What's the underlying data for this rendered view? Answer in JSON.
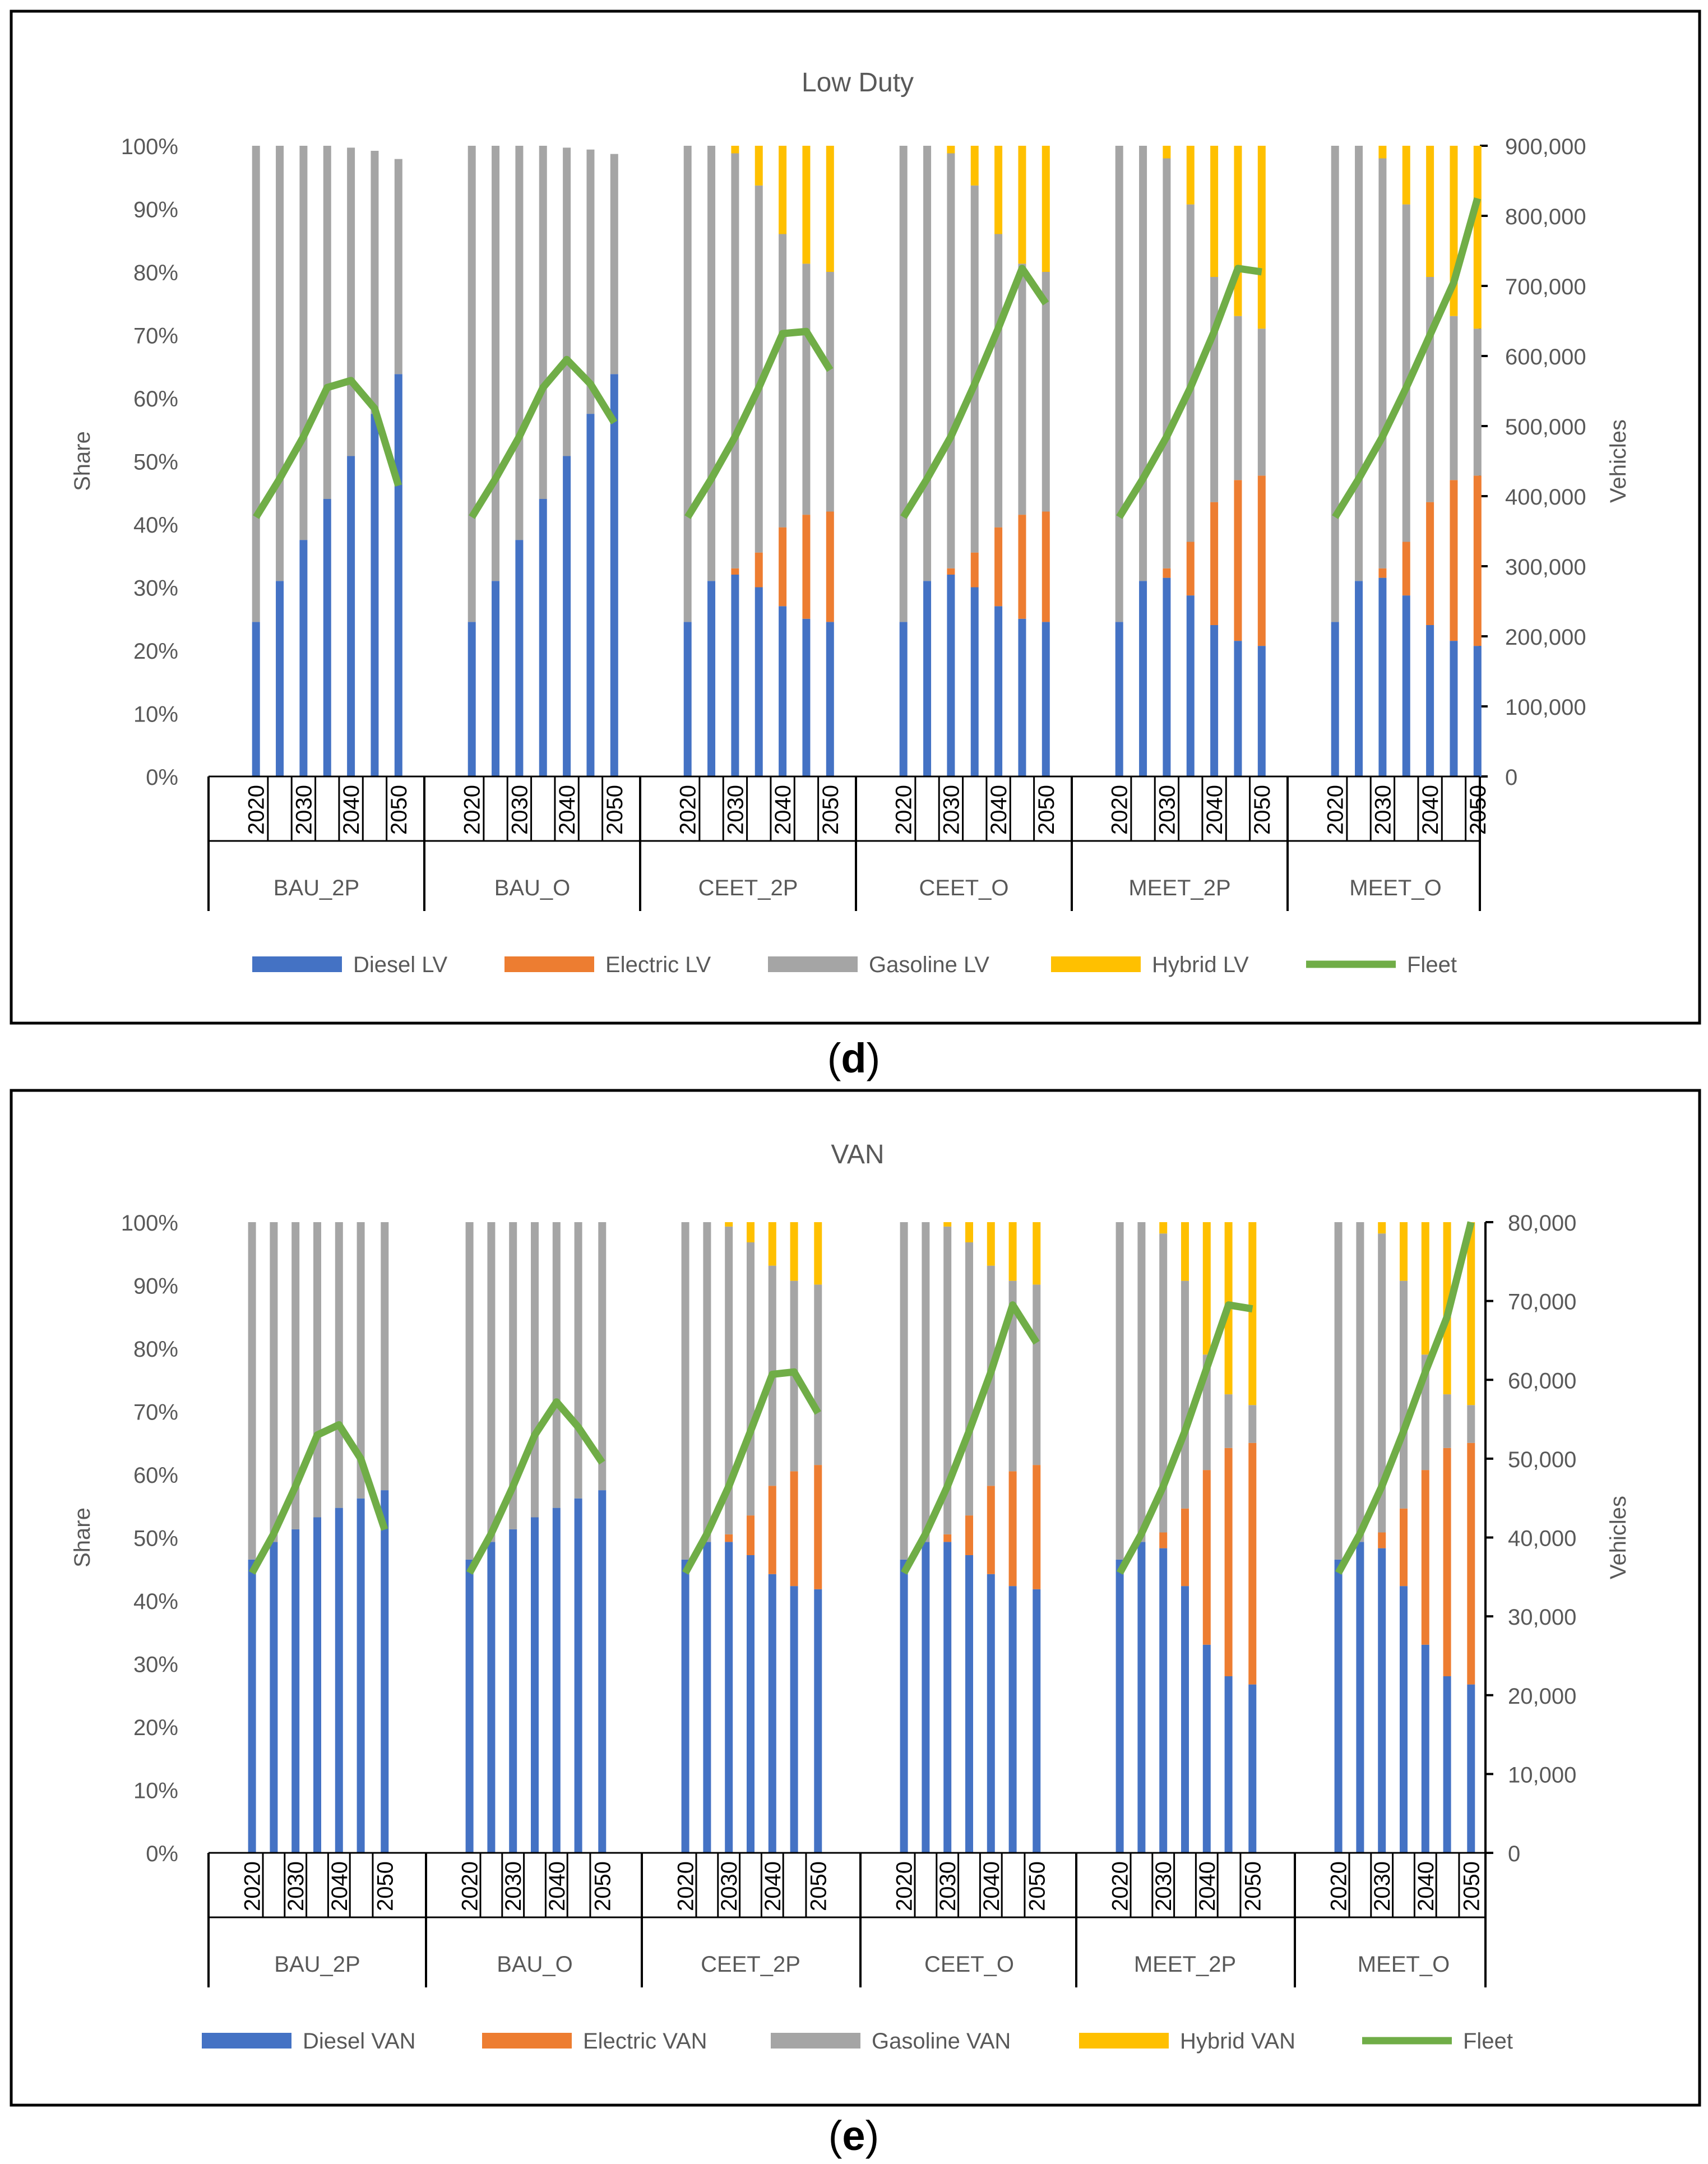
{
  "chart_data": [
    {
      "type": "bar",
      "subtype": "stacked-bar-with-line",
      "panel_label": "(d)",
      "panel_letter": "d",
      "title": "Low Duty",
      "ylabel": "Share",
      "y2label": "Vehicles",
      "ylim": [
        0,
        100
      ],
      "y2lim": [
        0,
        900000
      ],
      "yticks": [
        "0%",
        "10%",
        "20%",
        "30%",
        "40%",
        "50%",
        "60%",
        "70%",
        "80%",
        "90%",
        "100%"
      ],
      "y2ticks": [
        "0",
        "100,000",
        "200,000",
        "300,000",
        "400,000",
        "500,000",
        "600,000",
        "700,000",
        "800,000",
        "900,000"
      ],
      "years": [
        2020,
        2025,
        2030,
        2035,
        2040,
        2045,
        2050
      ],
      "tick_labels": [
        "2020",
        "2030",
        "2040",
        "2050"
      ],
      "groups": [
        "BAU_2P",
        "BAU_O",
        "CEET_2P",
        "CEET_O",
        "MEET_2P",
        "MEET_O"
      ],
      "legend": [
        "Diesel LV",
        "Electric LV",
        "Gasoline LV",
        "Hybrid LV",
        "Fleet"
      ],
      "colors": {
        "diesel": "#4472c4",
        "electric": "#ed7d31",
        "gasoline": "#a5a5a5",
        "hybrid": "#ffc000",
        "fleet": "#70ad47"
      },
      "series": [
        {
          "name": "Diesel LV",
          "values": [
            [
              24.5,
              31,
              37.5,
              44,
              50.8,
              57.5,
              63.8
            ],
            [
              24.5,
              31,
              37.5,
              44,
              50.8,
              57.5,
              63.8
            ],
            [
              24.5,
              31,
              32,
              30,
              27,
              25,
              24.5
            ],
            [
              24.5,
              31,
              32,
              30,
              27,
              25,
              24.5
            ],
            [
              24.5,
              31,
              31.5,
              28.7,
              24,
              21.5,
              20.7
            ],
            [
              24.5,
              31,
              31.5,
              28.7,
              24,
              21.5,
              20.7
            ]
          ]
        },
        {
          "name": "Electric LV",
          "values": [
            [
              0,
              0,
              0,
              0,
              0,
              0,
              0
            ],
            [
              0,
              0,
              0,
              0,
              0,
              0,
              0
            ],
            [
              0,
              0,
              1,
              5.5,
              12.5,
              16.5,
              17.5
            ],
            [
              0,
              0,
              1,
              5.5,
              12.5,
              16.5,
              17.5
            ],
            [
              0,
              0,
              1.5,
              8.5,
              19.5,
              25.5,
              27
            ],
            [
              0,
              0,
              1.5,
              8.5,
              19.5,
              25.5,
              27
            ]
          ]
        },
        {
          "name": "Gasoline LV",
          "values": [
            [
              75.5,
              69,
              62.5,
              56,
              48.9,
              41.7,
              34.1
            ],
            [
              75.5,
              69,
              62.5,
              56,
              48.9,
              41.9,
              34.9
            ],
            [
              75.5,
              69,
              65.8,
              58.2,
              46.5,
              39.8,
              38
            ],
            [
              75.5,
              69,
              65.8,
              58.2,
              46.5,
              39.8,
              38
            ],
            [
              75.5,
              69,
              65,
              53.5,
              35.7,
              26,
              23.3
            ],
            [
              75.5,
              69,
              65,
              53.5,
              35.7,
              26,
              23.3
            ]
          ]
        },
        {
          "name": "Hybrid LV",
          "values": [
            [
              0,
              0,
              0,
              0,
              0,
              0,
              0
            ],
            [
              0,
              0,
              0,
              0,
              0,
              0,
              0
            ],
            [
              0,
              0,
              1.2,
              6.3,
              14,
              18.7,
              20
            ],
            [
              0,
              0,
              1.2,
              6.3,
              14,
              18.7,
              20
            ],
            [
              0,
              0,
              2,
              9.3,
              20.8,
              27,
              29
            ],
            [
              0,
              0,
              2,
              9.3,
              20.8,
              27,
              29
            ]
          ]
        },
        {
          "name": "Fleet",
          "axis": "secondary",
          "values": [
            [
              370000,
              425000,
              485000,
              555000,
              565000,
              525000,
              415000
            ],
            [
              370000,
              425000,
              485000,
              555000,
              595000,
              560000,
              505000
            ],
            [
              370000,
              425000,
              485000,
              555000,
              632000,
              635000,
              580000
            ],
            [
              370000,
              425000,
              485000,
              560000,
              640000,
              725000,
              675000
            ],
            [
              370000,
              425000,
              485000,
              555000,
              635000,
              725000,
              720000
            ],
            [
              370000,
              425000,
              485000,
              555000,
              630000,
              705000,
              825000
            ]
          ]
        }
      ]
    },
    {
      "type": "bar",
      "subtype": "stacked-bar-with-line",
      "panel_label": "(e)",
      "panel_letter": "e",
      "title": "VAN",
      "ylabel": "Share",
      "y2label": "Vehicles",
      "ylim": [
        0,
        100
      ],
      "y2lim": [
        0,
        80000
      ],
      "yticks": [
        "0%",
        "10%",
        "20%",
        "30%",
        "40%",
        "50%",
        "60%",
        "70%",
        "80%",
        "90%",
        "100%"
      ],
      "y2ticks": [
        "0",
        "10,000",
        "20,000",
        "30,000",
        "40,000",
        "50,000",
        "60,000",
        "70,000",
        "80,000"
      ],
      "years": [
        2020,
        2025,
        2030,
        2035,
        2040,
        2045,
        2050
      ],
      "tick_labels": [
        "2020",
        "2030",
        "2040",
        "2050"
      ],
      "groups": [
        "BAU_2P",
        "BAU_O",
        "CEET_2P",
        "CEET_O",
        "MEET_2P",
        "MEET_O"
      ],
      "legend": [
        "Diesel VAN",
        "Electric VAN",
        "Gasoline VAN",
        "Hybrid VAN",
        "Fleet"
      ],
      "colors": {
        "diesel": "#4472c4",
        "electric": "#ed7d31",
        "gasoline": "#a5a5a5",
        "hybrid": "#ffc000",
        "fleet": "#70ad47"
      },
      "series": [
        {
          "name": "Diesel VAN",
          "values": [
            [
              46.5,
              49.3,
              51.3,
              53.2,
              54.7,
              56.2,
              57.5
            ],
            [
              46.5,
              49.3,
              51.3,
              53.2,
              54.7,
              56.2,
              57.5
            ],
            [
              46.5,
              49.3,
              49.3,
              47.2,
              44.2,
              42.3,
              41.8
            ],
            [
              46.5,
              49.3,
              49.3,
              47.2,
              44.2,
              42.3,
              41.8
            ],
            [
              46.5,
              49.3,
              48.3,
              42.3,
              33,
              28,
              26.7
            ],
            [
              46.5,
              49.3,
              48.3,
              42.3,
              33,
              28,
              26.7
            ]
          ]
        },
        {
          "name": "Electric VAN",
          "values": [
            [
              0,
              0,
              0,
              0,
              0,
              0,
              0
            ],
            [
              0,
              0,
              0,
              0,
              0,
              0,
              0
            ],
            [
              0,
              0,
              1.2,
              6.3,
              14,
              18.2,
              19.7
            ],
            [
              0,
              0,
              1.2,
              6.3,
              14,
              18.2,
              19.7
            ],
            [
              0,
              0,
              2.5,
              12.3,
              27.7,
              36.2,
              38.3
            ],
            [
              0,
              0,
              2.5,
              12.3,
              27.7,
              36.2,
              38.3
            ]
          ]
        },
        {
          "name": "Gasoline VAN",
          "values": [
            [
              53.5,
              50.7,
              48.7,
              46.8,
              45.3,
              43.8,
              42.5
            ],
            [
              53.5,
              50.7,
              48.7,
              46.8,
              45.3,
              43.8,
              42.5
            ],
            [
              53.5,
              50.7,
              48.8,
              43.3,
              34.9,
              30.2,
              28.6
            ],
            [
              53.5,
              50.7,
              48.8,
              43.3,
              34.9,
              30.2,
              28.6
            ],
            [
              53.5,
              50.7,
              47.4,
              36.1,
              18.3,
              8.5,
              6
            ],
            [
              53.5,
              50.7,
              47.4,
              36.1,
              18.3,
              8.5,
              6
            ]
          ]
        },
        {
          "name": "Hybrid VAN",
          "values": [
            [
              0,
              0,
              0,
              0,
              0,
              0,
              0
            ],
            [
              0,
              0,
              0,
              0,
              0,
              0,
              0
            ],
            [
              0,
              0,
              0.7,
              3.2,
              6.9,
              9.3,
              9.9
            ],
            [
              0,
              0,
              0.7,
              3.2,
              6.9,
              9.3,
              9.9
            ],
            [
              0,
              0,
              1.8,
              9.3,
              21,
              27.3,
              29
            ],
            [
              0,
              0,
              1.8,
              9.3,
              21,
              27.3,
              29
            ]
          ]
        },
        {
          "name": "Fleet",
          "axis": "secondary",
          "values": [
            [
              35500,
              40500,
              46500,
              53000,
              54300,
              50000,
              41000
            ],
            [
              35500,
              40500,
              46500,
              53000,
              57200,
              54000,
              49500
            ],
            [
              35500,
              40500,
              46500,
              53500,
              60700,
              61000,
              55800
            ],
            [
              35500,
              40500,
              46500,
              53500,
              61000,
              69500,
              64700
            ],
            [
              35500,
              40500,
              46500,
              53500,
              61500,
              69500,
              69000
            ],
            [
              35500,
              40500,
              46500,
              53500,
              61000,
              68000,
              80000
            ]
          ]
        }
      ]
    }
  ]
}
